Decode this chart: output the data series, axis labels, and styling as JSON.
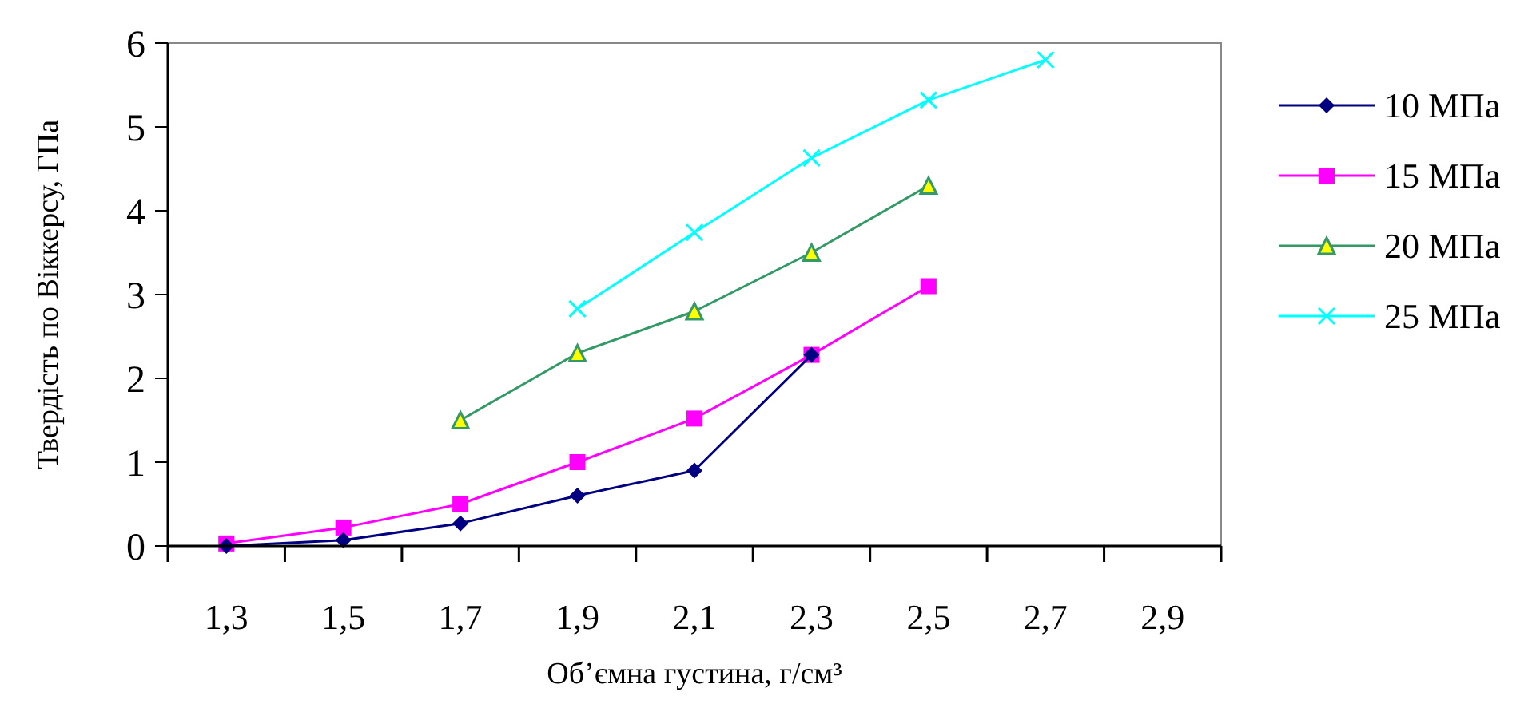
{
  "chart_data": {
    "type": "line",
    "xlabel": "Об’ємна густина, г/см³",
    "ylabel": "Твердість по Віккерсу, ГПа",
    "categories": [
      "1,3",
      "1,5",
      "1,7",
      "1,9",
      "2,1",
      "2,3",
      "2,5",
      "2,7",
      "2,9"
    ],
    "ylim": [
      0,
      6
    ],
    "yticks": [
      0,
      1,
      2,
      3,
      4,
      5,
      6
    ],
    "grid": false,
    "legend": "right",
    "series": [
      {
        "name": "10 МПа",
        "color": "#000080",
        "marker": "diamond",
        "values": [
          0,
          0.07,
          0.27,
          0.6,
          0.9,
          2.28,
          null,
          null,
          null
        ]
      },
      {
        "name": "15 МПа",
        "color": "#ff00ff",
        "marker": "square",
        "values": [
          0.03,
          0.22,
          0.5,
          1.0,
          1.52,
          2.28,
          3.1,
          null,
          null
        ]
      },
      {
        "name": "20 МПа",
        "color": "#339966",
        "marker": "triangle",
        "values": [
          null,
          null,
          1.5,
          2.3,
          2.8,
          3.5,
          4.3,
          null,
          null
        ]
      },
      {
        "name": "25 МПа",
        "color": "#00ffff",
        "marker": "cross",
        "values": [
          null,
          null,
          null,
          2.83,
          3.74,
          4.63,
          5.32,
          5.8,
          null
        ]
      }
    ]
  }
}
